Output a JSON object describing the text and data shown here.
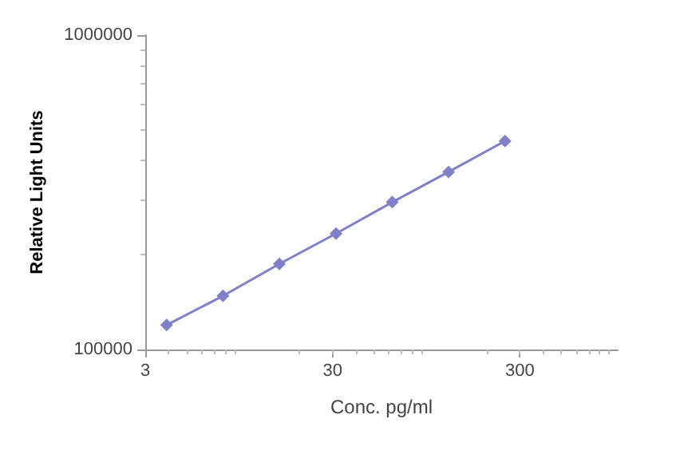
{
  "chart_data": {
    "type": "line",
    "xlabel": "Conc. pg/ml",
    "ylabel": "Relative Light Units",
    "x": [
      3.9,
      7.8,
      15.6,
      31.3,
      62.5,
      125,
      250
    ],
    "series": [
      {
        "color": "#8080c8",
        "values": [
          119600,
          148100,
          187100,
          233700,
          294200,
          367300,
          460300
        ]
      }
    ],
    "log": "xy",
    "xlim": [
      3,
      1000
    ],
    "xticks": [
      3,
      30,
      300
    ],
    "ylim": [
      100000,
      1000000
    ],
    "yticks": [
      100000,
      1000000
    ],
    "grid": false,
    "marker": "diamond",
    "line_style": "solid"
  }
}
